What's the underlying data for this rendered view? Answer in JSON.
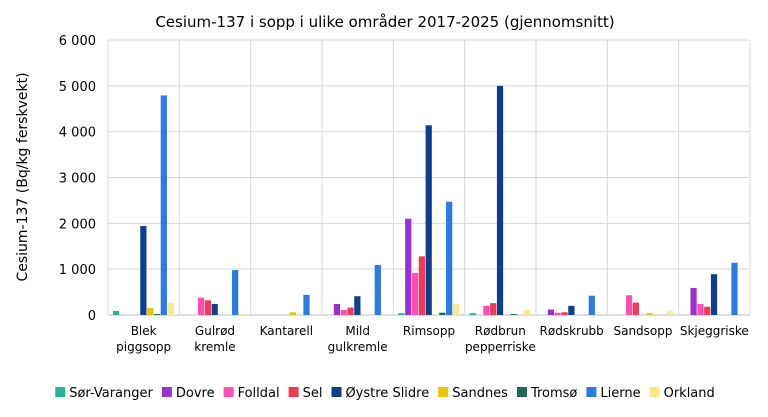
{
  "chart_data": {
    "type": "bar",
    "title": "Cesium-137 i sopp i ulike områder 2017-2025 (gjennomsnitt)",
    "xlabel": "",
    "ylabel": "Cesium-137 (Bq/kg ferskvekt)",
    "ylim": [
      0,
      6000
    ],
    "yticks": [
      0,
      1000,
      2000,
      3000,
      4000,
      5000,
      6000
    ],
    "ytick_labels": [
      "0",
      "1 000",
      "2 000",
      "3 000",
      "4 000",
      "5 000",
      "6 000"
    ],
    "grid": true,
    "legend_position": "bottom",
    "categories": [
      [
        "Blek",
        "piggsopp"
      ],
      [
        "Gulrød",
        "kremle"
      ],
      [
        "Kantarell"
      ],
      [
        "Mild",
        "gulkremle"
      ],
      [
        "Rimsopp"
      ],
      [
        "Rødbrun",
        "pepperriske"
      ],
      [
        "Rødskrubb"
      ],
      [
        "Sandsopp"
      ],
      [
        "Skjeggriske"
      ]
    ],
    "series": [
      {
        "name": "Sør-Varanger",
        "color": "#2bb39a",
        "values": [
          90,
          0,
          0,
          0,
          40,
          40,
          0,
          0,
          0
        ]
      },
      {
        "name": "Dovre",
        "color": "#9b2fd1",
        "values": [
          0,
          0,
          0,
          240,
          2100,
          0,
          120,
          0,
          590
        ]
      },
      {
        "name": "Folldal",
        "color": "#ff4fb0",
        "values": [
          0,
          380,
          0,
          110,
          920,
          200,
          50,
          430,
          240
        ]
      },
      {
        "name": "Sel",
        "color": "#f03a5a",
        "values": [
          0,
          320,
          0,
          160,
          1280,
          260,
          60,
          270,
          180
        ]
      },
      {
        "name": "Øystre Slidre",
        "color": "#0c3f8c",
        "values": [
          1940,
          240,
          0,
          410,
          4140,
          5000,
          200,
          0,
          890
        ]
      },
      {
        "name": "Sandnes",
        "color": "#e7c600",
        "values": [
          150,
          0,
          60,
          0,
          0,
          0,
          0,
          40,
          0
        ]
      },
      {
        "name": "Tromsø",
        "color": "#1a6b55",
        "values": [
          20,
          0,
          0,
          0,
          50,
          20,
          0,
          0,
          0
        ]
      },
      {
        "name": "Lierne",
        "color": "#2a7be3",
        "values": [
          4790,
          980,
          440,
          1090,
          2470,
          0,
          420,
          0,
          1140
        ]
      },
      {
        "name": "Orkland",
        "color": "#fbe98a",
        "values": [
          270,
          20,
          0,
          0,
          250,
          110,
          0,
          90,
          0
        ]
      }
    ]
  }
}
